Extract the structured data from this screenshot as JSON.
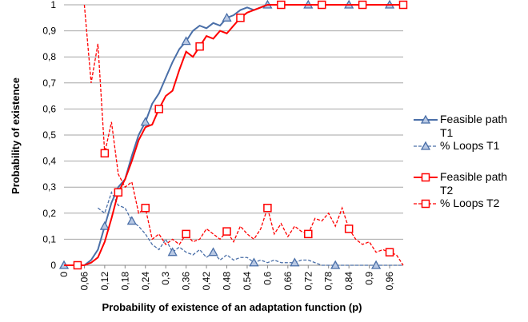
{
  "chart_data": {
    "type": "line",
    "y_label": "Probability of existence",
    "x_label": "Probability of existence of an adaptation function (p)",
    "x": [
      0,
      0.02,
      0.04,
      0.06,
      0.08,
      0.1,
      0.12,
      0.14,
      0.16,
      0.18,
      0.2,
      0.22,
      0.24,
      0.26,
      0.28,
      0.3,
      0.32,
      0.34,
      0.36,
      0.38,
      0.4,
      0.42,
      0.44,
      0.46,
      0.48,
      0.5,
      0.52,
      0.54,
      0.56,
      0.58,
      0.6,
      0.62,
      0.64,
      0.66,
      0.68,
      0.7,
      0.72,
      0.74,
      0.76,
      0.78,
      0.8,
      0.82,
      0.84,
      0.86,
      0.88,
      0.9,
      0.92,
      0.94,
      0.96,
      0.98,
      1
    ],
    "xlim": [
      0,
      1
    ],
    "xticks": [
      0,
      {
        "value": 0.06,
        "label": "0,06"
      },
      {
        "value": 0.12,
        "label": "0,12"
      },
      {
        "value": 0.18,
        "label": "0,18"
      },
      {
        "value": 0.24,
        "label": "0,24"
      },
      {
        "value": 0.3,
        "label": "0,3"
      },
      {
        "value": 0.36,
        "label": "0,36"
      },
      {
        "value": 0.42,
        "label": "0,42"
      },
      {
        "value": 0.48,
        "label": "0,48"
      },
      {
        "value": 0.54,
        "label": "0,54"
      },
      {
        "value": 0.6,
        "label": "0,6"
      },
      {
        "value": 0.66,
        "label": "0,66"
      },
      {
        "value": 0.72,
        "label": "0,72"
      },
      {
        "value": 0.78,
        "label": "0,78"
      },
      {
        "value": 0.84,
        "label": "0,84"
      },
      {
        "value": 0.9,
        "label": "0,9"
      },
      {
        "value": 0.96,
        "label": "0,96"
      }
    ],
    "ylim": [
      0,
      1
    ],
    "yticks": [
      0,
      {
        "value": 0.1,
        "label": "0,1"
      },
      {
        "value": 0.2,
        "label": "0,2"
      },
      {
        "value": 0.3,
        "label": "0,3"
      },
      {
        "value": 0.4,
        "label": "0,4"
      },
      {
        "value": 0.5,
        "label": "0,5"
      },
      {
        "value": 0.6,
        "label": "0,6"
      },
      {
        "value": 0.7,
        "label": "0,7"
      },
      {
        "value": 0.8,
        "label": "0,8"
      },
      {
        "value": 0.9,
        "label": "0,9"
      },
      1
    ],
    "grid": true,
    "legend": "right",
    "series": [
      {
        "name": "Feasible path T1",
        "color": "#4a6fa8",
        "marker": "triangle",
        "dashed": false,
        "values": [
          0,
          0,
          0,
          0,
          0.02,
          0.06,
          0.15,
          0.24,
          0.3,
          0.33,
          0.42,
          0.5,
          0.55,
          0.62,
          0.66,
          0.72,
          0.78,
          0.83,
          0.86,
          0.9,
          0.92,
          0.91,
          0.93,
          0.92,
          0.95,
          0.96,
          0.98,
          0.99,
          0.98,
          0.99,
          1,
          1,
          1,
          1,
          1,
          1,
          1,
          1,
          1,
          1,
          1,
          1,
          1,
          1,
          1,
          1,
          1,
          1,
          1,
          1,
          1
        ]
      },
      {
        "name": "% Loops T1",
        "color": "#4a6fa8",
        "marker": "triangle",
        "dashed": true,
        "values": [
          null,
          null,
          null,
          null,
          null,
          0.22,
          0.2,
          0.28,
          0.23,
          0.22,
          0.17,
          0.15,
          0.12,
          0.08,
          0.06,
          0.1,
          0.05,
          0.07,
          0.05,
          0.04,
          0.06,
          0.03,
          0.05,
          0.02,
          0.04,
          0.02,
          0.03,
          0.03,
          0.01,
          0.02,
          0.01,
          0.02,
          0.01,
          0.01,
          0.01,
          0.02,
          0.02,
          0.01,
          0,
          0,
          0,
          0,
          0,
          0,
          0,
          0,
          0,
          0,
          0,
          0,
          0
        ]
      },
      {
        "name": "Feasible path T2",
        "color": "#ff0000",
        "marker": "square",
        "dashed": false,
        "values": [
          0,
          0,
          0,
          0,
          0.01,
          0.03,
          0.09,
          0.18,
          0.28,
          0.33,
          0.4,
          0.48,
          0.53,
          0.54,
          0.6,
          0.65,
          0.67,
          0.75,
          0.82,
          0.8,
          0.84,
          0.88,
          0.87,
          0.9,
          0.89,
          0.92,
          0.95,
          0.97,
          0.98,
          0.99,
          1,
          1,
          1,
          1,
          1,
          1,
          1,
          1,
          1,
          1,
          1,
          1,
          1,
          1,
          1,
          1,
          1,
          1,
          1,
          1,
          1
        ]
      },
      {
        "name": "% Loops T2",
        "color": "#ff0000",
        "marker": "square",
        "dashed": true,
        "values": [
          null,
          null,
          null,
          1,
          0.7,
          0.85,
          0.43,
          0.55,
          0.35,
          0.3,
          0.32,
          0.2,
          0.22,
          0.1,
          0.12,
          0.08,
          0.1,
          0.08,
          0.12,
          0.09,
          0.1,
          0.14,
          0.12,
          0.1,
          0.13,
          0.09,
          0.15,
          0.12,
          0.1,
          0.14,
          0.22,
          0.12,
          0.16,
          0.11,
          0.15,
          0.13,
          0.12,
          0.18,
          0.17,
          0.2,
          0.15,
          0.22,
          0.14,
          0.1,
          0.08,
          0.09,
          0.05,
          0.06,
          0.05,
          0.04,
          0
        ]
      }
    ]
  }
}
